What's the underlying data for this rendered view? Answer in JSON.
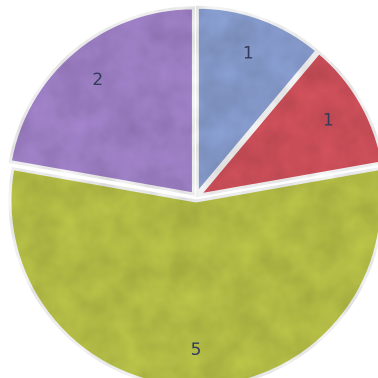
{
  "chart_data": {
    "type": "pie",
    "values": [
      1,
      1,
      5,
      2
    ],
    "labels": [
      "1",
      "1",
      "5",
      "2"
    ],
    "colors": [
      "#8ea4d8",
      "#d8545f",
      "#bfc94a",
      "#a787d1"
    ],
    "exploded": true
  }
}
